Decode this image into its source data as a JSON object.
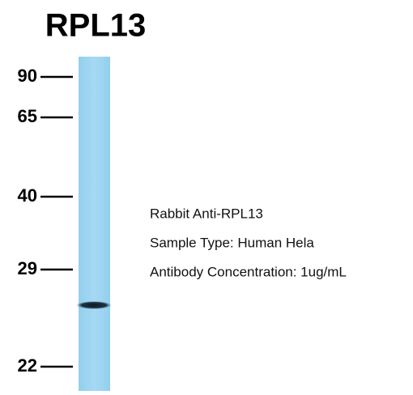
{
  "title": "RPL13",
  "markers": [
    "90",
    "65",
    "40",
    "29",
    "22"
  ],
  "notes": [
    "Rabbit Anti-RPL13",
    "Sample Type: Human Hela",
    "Antibody Concentration: 1ug/mL"
  ]
}
